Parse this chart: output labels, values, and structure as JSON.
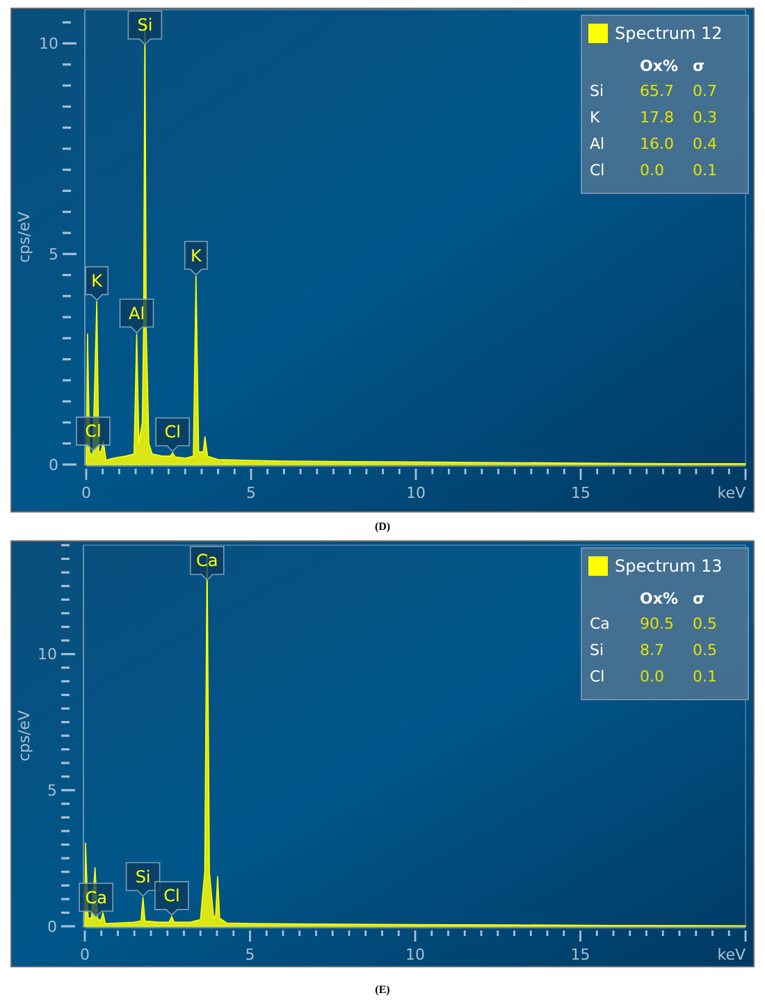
{
  "chart_data": [
    {
      "type": "area",
      "title": "(D)",
      "xlabel": "keV",
      "ylabel": "cps/eV",
      "legend": "top right",
      "grid": false,
      "x": [
        0,
        0.04,
        0.1,
        0.2,
        0.32,
        0.38,
        0.45,
        0.52,
        0.6,
        0.8,
        1.2,
        1.45,
        1.53,
        1.6,
        1.7,
        1.74,
        1.78,
        1.82,
        1.9,
        2.0,
        2.3,
        2.55,
        2.62,
        2.7,
        3.0,
        3.25,
        3.33,
        3.41,
        3.55,
        3.6,
        3.68,
        4.0,
        5,
        6,
        8,
        10,
        12,
        14,
        16,
        18,
        20
      ],
      "series": [
        {
          "name": "Spectrum 12",
          "color": "#ffff00",
          "values": [
            0,
            3.1,
            0.3,
            0.2,
            3.87,
            0.3,
            0.3,
            0.55,
            0.1,
            0.15,
            0.2,
            0.25,
            3.1,
            0.5,
            1.0,
            3.2,
            10.6,
            3.2,
            0.5,
            0.25,
            0.2,
            0.2,
            0.28,
            0.18,
            0.15,
            0.2,
            4.47,
            0.3,
            0.3,
            0.66,
            0.2,
            0.12,
            0.1,
            0.08,
            0.07,
            0.06,
            0.05,
            0.04,
            0.03,
            0.02,
            0.02
          ]
        }
      ],
      "xlim": [
        0,
        20
      ],
      "ylim": [
        0,
        10.8
      ],
      "xticks": [
        0,
        {
          "value": 0.5,
          "label": null
        },
        {
          "value": 1,
          "label": null
        },
        {
          "value": 1.5,
          "label": null
        },
        {
          "value": 2,
          "label": null
        },
        {
          "value": 2.5,
          "label": null
        },
        {
          "value": 3,
          "label": null
        },
        {
          "value": 3.5,
          "label": null
        },
        {
          "value": 4,
          "label": null
        },
        {
          "value": 4.5,
          "label": null
        },
        5,
        {
          "value": 5.5,
          "label": null
        },
        {
          "value": 6,
          "label": null
        },
        {
          "value": 6.5,
          "label": null
        },
        {
          "value": 7,
          "label": null
        },
        {
          "value": 7.5,
          "label": null
        },
        {
          "value": 8,
          "label": null
        },
        {
          "value": 8.5,
          "label": null
        },
        {
          "value": 9,
          "label": null
        },
        {
          "value": 9.5,
          "label": null
        },
        10,
        {
          "value": 10.5,
          "label": null
        },
        {
          "value": 11,
          "label": null
        },
        {
          "value": 11.5,
          "label": null
        },
        {
          "value": 12,
          "label": null
        },
        {
          "value": 12.5,
          "label": null
        },
        {
          "value": 13,
          "label": null
        },
        {
          "value": 13.5,
          "label": null
        },
        {
          "value": 14,
          "label": null
        },
        {
          "value": 14.5,
          "label": null
        },
        15,
        {
          "value": 15.5,
          "label": null
        },
        {
          "value": 16,
          "label": null
        },
        {
          "value": 16.5,
          "label": null
        },
        {
          "value": 17,
          "label": null
        },
        {
          "value": 17.5,
          "label": null
        },
        {
          "value": 18,
          "label": null
        },
        {
          "value": 18.5,
          "label": null
        },
        {
          "value": 19,
          "label": null
        },
        {
          "value": 19.5,
          "label": null
        },
        {
          "value": 20,
          "label": null
        }
      ],
      "yticks": [
        0,
        {
          "value": 0.5,
          "label": null
        },
        {
          "value": 1,
          "label": null
        },
        {
          "value": 1.5,
          "label": null
        },
        {
          "value": 2,
          "label": null
        },
        {
          "value": 2.5,
          "label": null
        },
        {
          "value": 3,
          "label": null
        },
        {
          "value": 3.5,
          "label": null
        },
        {
          "value": 4,
          "label": null
        },
        {
          "value": 4.5,
          "label": null
        },
        5,
        {
          "value": 5.5,
          "label": null
        },
        {
          "value": 6,
          "label": null
        },
        {
          "value": 6.5,
          "label": null
        },
        {
          "value": 7,
          "label": null
        },
        {
          "value": 7.5,
          "label": null
        },
        {
          "value": 8,
          "label": null
        },
        {
          "value": 8.5,
          "label": null
        },
        {
          "value": 9,
          "label": null
        },
        {
          "value": 9.5,
          "label": null
        },
        10,
        {
          "value": 10.5,
          "label": null
        }
      ],
      "annotations": [
        {
          "text": "Si",
          "x": 1.78,
          "y": 10.6
        },
        {
          "text": "K",
          "x": 0.32,
          "y": 3.87
        },
        {
          "text": "Al",
          "x": 1.53,
          "y": 3.1
        },
        {
          "text": "K",
          "x": 3.33,
          "y": 4.47
        },
        {
          "text": "Cl",
          "x": 0.21,
          "y": 0.3
        },
        {
          "text": "Cl",
          "x": 2.62,
          "y": 0.28
        },
        "Ox%",
        "σ",
        "Si",
        "65.7",
        "0.7",
        "K",
        "17.8",
        "0.3",
        "Al",
        "16.0",
        "0.4",
        "Cl",
        "0.0",
        "0.1"
      ]
    },
    {
      "type": "area",
      "title": "(E)",
      "xlabel": "keV",
      "ylabel": "cps/eV",
      "legend": "top right",
      "grid": false,
      "x": [
        0,
        0.02,
        0.1,
        0.2,
        0.31,
        0.38,
        0.48,
        0.55,
        0.62,
        1.0,
        1.5,
        1.7,
        1.76,
        1.82,
        2.2,
        2.55,
        2.63,
        2.7,
        3.2,
        3.5,
        3.63,
        3.7,
        3.77,
        3.9,
        3.96,
        4.02,
        4.08,
        4.3,
        5,
        7,
        10,
        13,
        16,
        20
      ],
      "series": [
        {
          "name": "Spectrum 13",
          "color": "#ffff00",
          "values": [
            0,
            3.06,
            0.3,
            0.3,
            2.15,
            0.3,
            0.2,
            0.5,
            0.1,
            0.12,
            0.15,
            0.2,
            1.06,
            0.2,
            0.15,
            0.15,
            0.36,
            0.15,
            0.15,
            0.25,
            2.0,
            13.65,
            2.0,
            0.3,
            0.4,
            1.83,
            0.3,
            0.12,
            0.1,
            0.08,
            0.06,
            0.05,
            0.03,
            0.02
          ]
        }
      ],
      "xlim": [
        0,
        20
      ],
      "ylim": [
        0,
        14
      ],
      "xticks": [
        0,
        {
          "value": 0.5,
          "label": null
        },
        {
          "value": 1,
          "label": null
        },
        {
          "value": 1.5,
          "label": null
        },
        {
          "value": 2,
          "label": null
        },
        {
          "value": 2.5,
          "label": null
        },
        {
          "value": 3,
          "label": null
        },
        {
          "value": 3.5,
          "label": null
        },
        {
          "value": 4,
          "label": null
        },
        {
          "value": 4.5,
          "label": null
        },
        5,
        {
          "value": 5.5,
          "label": null
        },
        {
          "value": 6,
          "label": null
        },
        {
          "value": 6.5,
          "label": null
        },
        {
          "value": 7,
          "label": null
        },
        {
          "value": 7.5,
          "label": null
        },
        {
          "value": 8,
          "label": null
        },
        {
          "value": 8.5,
          "label": null
        },
        {
          "value": 9,
          "label": null
        },
        {
          "value": 9.5,
          "label": null
        },
        10,
        {
          "value": 10.5,
          "label": null
        },
        {
          "value": 11,
          "label": null
        },
        {
          "value": 11.5,
          "label": null
        },
        {
          "value": 12,
          "label": null
        },
        {
          "value": 12.5,
          "label": null
        },
        {
          "value": 13,
          "label": null
        },
        {
          "value": 13.5,
          "label": null
        },
        {
          "value": 14,
          "label": null
        },
        {
          "value": 14.5,
          "label": null
        },
        15,
        {
          "value": 15.5,
          "label": null
        },
        {
          "value": 16,
          "label": null
        },
        {
          "value": 16.5,
          "label": null
        },
        {
          "value": 17,
          "label": null
        },
        {
          "value": 17.5,
          "label": null
        },
        {
          "value": 18,
          "label": null
        },
        {
          "value": 18.5,
          "label": null
        },
        {
          "value": 19,
          "label": null
        },
        {
          "value": 19.5,
          "label": null
        },
        {
          "value": 20,
          "label": null
        }
      ],
      "yticks": [
        0,
        {
          "value": 0.5,
          "label": null
        },
        {
          "value": 1,
          "label": null
        },
        {
          "value": 1.5,
          "label": null
        },
        {
          "value": 2,
          "label": null
        },
        {
          "value": 2.5,
          "label": null
        },
        {
          "value": 3,
          "label": null
        },
        {
          "value": 3.5,
          "label": null
        },
        {
          "value": 4,
          "label": null
        },
        {
          "value": 4.5,
          "label": null
        },
        5,
        {
          "value": 5.5,
          "label": null
        },
        {
          "value": 6,
          "label": null
        },
        {
          "value": 6.5,
          "label": null
        },
        {
          "value": 7,
          "label": null
        },
        {
          "value": 7.5,
          "label": null
        },
        {
          "value": 8,
          "label": null
        },
        {
          "value": 8.5,
          "label": null
        },
        {
          "value": 9,
          "label": null
        },
        {
          "value": 9.5,
          "label": null
        },
        10,
        {
          "value": 10.5,
          "label": null
        },
        {
          "value": 11,
          "label": null
        },
        {
          "value": 11.5,
          "label": null
        },
        {
          "value": 12,
          "label": null
        },
        {
          "value": 12.5,
          "label": null
        },
        {
          "value": 13,
          "label": null
        },
        {
          "value": 13.5,
          "label": null
        },
        {
          "value": 14,
          "label": null
        }
      ],
      "annotations": [
        {
          "text": "Ca",
          "x": 3.7,
          "y": 13.65
        },
        {
          "text": "Ca",
          "x": 0.34,
          "y": 0.3
        },
        {
          "text": "Si",
          "x": 1.76,
          "y": 1.06
        },
        {
          "text": "Cl",
          "x": 2.63,
          "y": 0.36
        },
        "Ox%",
        "σ",
        "Ca",
        "90.5",
        "0.5",
        "Si",
        "8.7",
        "0.5",
        "Cl",
        "0.0",
        "0.1"
      ]
    }
  ]
}
